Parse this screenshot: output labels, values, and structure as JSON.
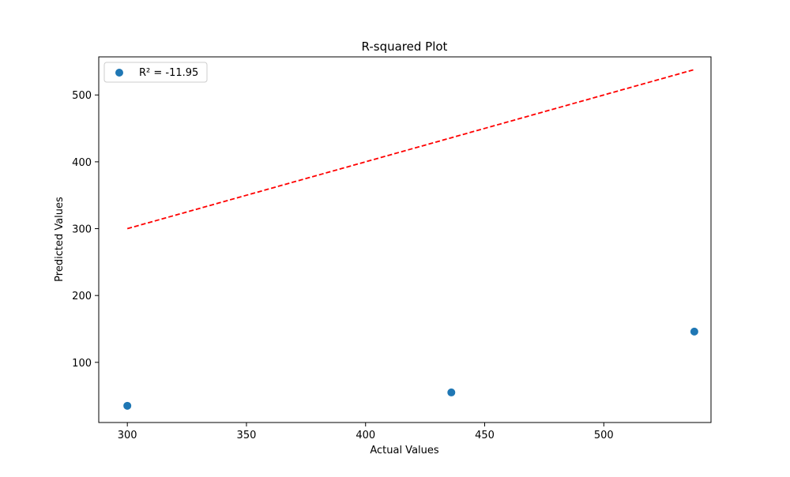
{
  "chart_data": {
    "type": "scatter",
    "title": "R-squared Plot",
    "xlabel": "Actual Values",
    "ylabel": "Predicted Values",
    "xlim": [
      288,
      545
    ],
    "ylim": [
      10,
      557
    ],
    "x_ticks": [
      300,
      350,
      400,
      450,
      500
    ],
    "y_ticks": [
      100,
      200,
      300,
      400,
      500
    ],
    "grid": false,
    "legend_position": "top-left",
    "series": [
      {
        "name": "R² = -11.95",
        "kind": "scatter",
        "color": "#1f77b4",
        "x": [
          300,
          436,
          538
        ],
        "y": [
          35,
          55,
          146
        ]
      }
    ],
    "reference_line": {
      "kind": "line",
      "style": "dashed",
      "color": "#ff0000",
      "x": [
        300,
        538
      ],
      "y": [
        300,
        538
      ]
    }
  }
}
